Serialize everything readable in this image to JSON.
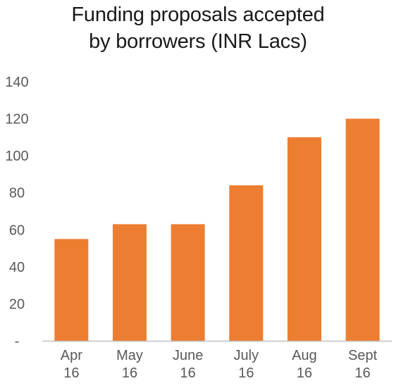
{
  "chart_data": {
    "type": "bar",
    "title": [
      "Funding proposals accepted",
      "by borrowers (INR Lacs)"
    ],
    "xlabel": "",
    "ylabel": "",
    "categories": [
      [
        "Apr",
        "16"
      ],
      [
        "May",
        "16"
      ],
      [
        "June",
        "16"
      ],
      [
        "July",
        "16"
      ],
      [
        "Aug",
        "16"
      ],
      [
        "Sept",
        "16"
      ]
    ],
    "values": [
      55,
      63,
      63,
      84,
      110,
      120
    ],
    "ylim": [
      0,
      140
    ],
    "yticks": [
      0,
      20,
      40,
      60,
      80,
      100,
      120,
      140
    ],
    "ytick_labels": [
      "-",
      "20",
      "40",
      "60",
      "80",
      "100",
      "120",
      "140"
    ],
    "grid": false,
    "legend": "none",
    "colors": {
      "bar": "#ED7D31",
      "axis": "#BFBFBF",
      "tick_text": "#595959",
      "title_text": "#1a1a1a"
    }
  }
}
